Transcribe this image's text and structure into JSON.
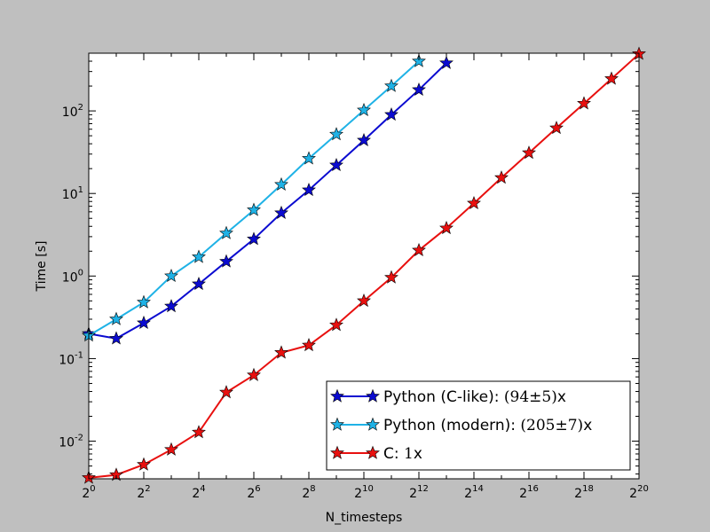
{
  "chart_data": {
    "type": "line",
    "title": "",
    "xlabel": "N_timesteps",
    "ylabel": "Time [s]",
    "x_scale": "log2",
    "y_scale": "log10",
    "xlim": [
      1,
      1048576
    ],
    "ylim": [
      0.0035,
      500
    ],
    "grid": false,
    "legend_position": "lower-right",
    "x_ticks": [
      {
        "value": 1,
        "base": "2",
        "exp": "0"
      },
      {
        "value": 4,
        "base": "2",
        "exp": "2"
      },
      {
        "value": 16,
        "base": "2",
        "exp": "4"
      },
      {
        "value": 64,
        "base": "2",
        "exp": "6"
      },
      {
        "value": 256,
        "base": "2",
        "exp": "8"
      },
      {
        "value": 1024,
        "base": "2",
        "exp": "10"
      },
      {
        "value": 4096,
        "base": "2",
        "exp": "12"
      },
      {
        "value": 16384,
        "base": "2",
        "exp": "14"
      },
      {
        "value": 65536,
        "base": "2",
        "exp": "16"
      },
      {
        "value": 262144,
        "base": "2",
        "exp": "18"
      },
      {
        "value": 1048576,
        "base": "2",
        "exp": "20"
      }
    ],
    "y_ticks": [
      {
        "value": 0.01,
        "base": "10",
        "exp": "-2"
      },
      {
        "value": 0.1,
        "base": "10",
        "exp": "-1"
      },
      {
        "value": 1,
        "base": "10",
        "exp": "0"
      },
      {
        "value": 10,
        "base": "10",
        "exp": "1"
      },
      {
        "value": 100,
        "base": "10",
        "exp": "2"
      }
    ],
    "series": [
      {
        "name": "Python (C-like): (94±5)x",
        "color": "#0b0bd0",
        "x": [
          1,
          2,
          4,
          8,
          16,
          32,
          64,
          128,
          256,
          512,
          1024,
          2048,
          4096,
          8192
        ],
        "y": [
          0.2,
          0.175,
          0.27,
          0.43,
          0.8,
          1.5,
          2.8,
          5.8,
          11,
          22,
          44,
          90,
          180,
          380
        ]
      },
      {
        "name": "Python (modern): (205±7)x",
        "color": "#1fb2e6",
        "x": [
          1,
          2,
          4,
          8,
          16,
          32,
          64,
          128,
          256,
          512,
          1024,
          2048,
          4096
        ],
        "y": [
          0.19,
          0.3,
          0.48,
          1.0,
          1.7,
          3.3,
          6.3,
          12.8,
          26.5,
          52,
          102,
          200,
          400
        ]
      },
      {
        "name": "C: 1x",
        "color": "#e8100f",
        "x": [
          1,
          2,
          4,
          8,
          16,
          32,
          64,
          128,
          256,
          512,
          1024,
          2048,
          4096,
          8192,
          16384,
          32768,
          65536,
          131072,
          262144,
          524288,
          1048576
        ],
        "y": [
          0.0036,
          0.0039,
          0.0052,
          0.0079,
          0.0128,
          0.039,
          0.063,
          0.118,
          0.145,
          0.255,
          0.5,
          0.96,
          2.05,
          3.8,
          7.6,
          15.5,
          31,
          62,
          123,
          245,
          490
        ]
      }
    ],
    "legend": {
      "entries": [
        {
          "prefix": "Python (C-like): ",
          "math": "(94±5)",
          "suffix": "x"
        },
        {
          "prefix": "Python (modern): ",
          "math": "(205±7)",
          "suffix": "x"
        },
        {
          "prefix": "C: ",
          "math": "1",
          "suffix": "x"
        }
      ]
    }
  }
}
